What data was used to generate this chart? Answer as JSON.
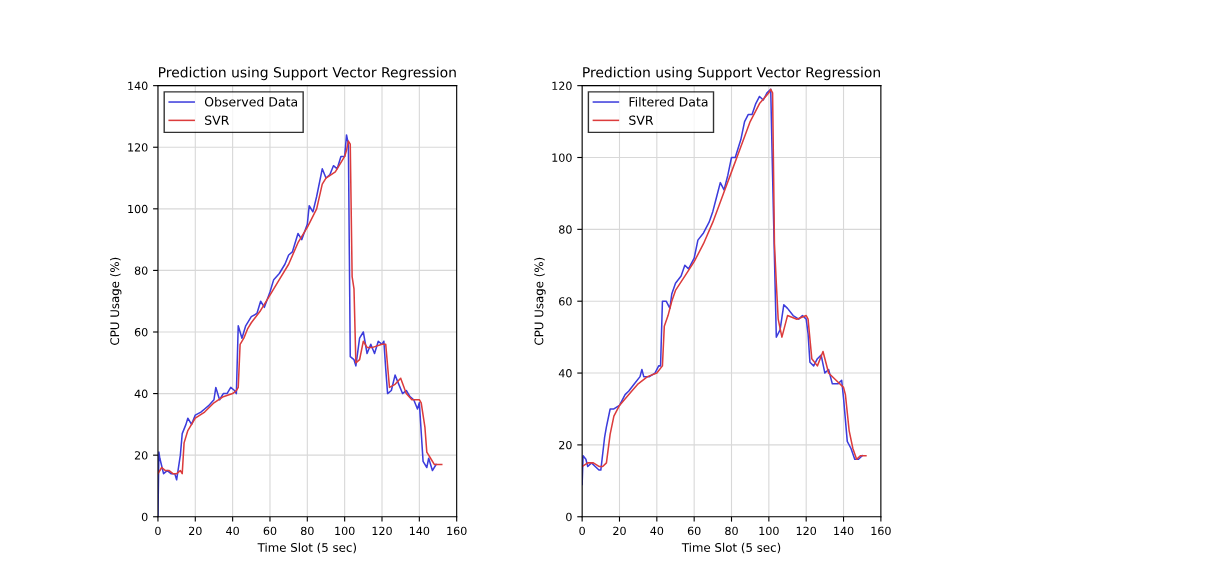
{
  "chart_data": [
    {
      "type": "line",
      "title": "Prediction using Support Vector Regression",
      "xlabel": "Time Slot (5 sec)",
      "ylabel": "CPU Usage (%)",
      "xlim": [
        0,
        160
      ],
      "xticks": [
        0,
        20,
        40,
        60,
        80,
        100,
        120,
        140,
        160
      ],
      "ylim": [
        0,
        140
      ],
      "yticks": [
        0,
        20,
        40,
        60,
        80,
        100,
        120,
        140
      ],
      "grid": true,
      "legend": "top left",
      "series": [
        {
          "name": "Observed Data",
          "color": "#3c3cdc",
          "x": [
            0,
            0.5,
            1,
            3,
            5,
            7,
            9,
            10,
            12,
            13,
            15,
            16,
            18,
            20,
            23,
            25,
            27,
            30,
            31,
            33,
            35,
            37,
            39,
            41,
            42,
            43,
            45,
            47,
            50,
            53,
            55,
            57,
            60,
            62,
            65,
            68,
            70,
            72,
            75,
            77,
            80,
            81,
            83,
            85,
            88,
            90,
            92,
            94,
            96,
            98,
            100,
            101,
            102,
            103,
            105,
            106,
            108,
            110,
            112,
            114,
            116,
            118,
            120,
            121,
            122,
            123,
            125,
            127,
            129,
            131,
            133,
            135,
            137,
            139,
            140,
            142,
            144,
            145,
            147,
            149
          ],
          "values": [
            0,
            21,
            19,
            14,
            15,
            14,
            14,
            12,
            20,
            27,
            30,
            32,
            30,
            33,
            34,
            35,
            36,
            38,
            42,
            38,
            40,
            40,
            42,
            41,
            40,
            62,
            58,
            62,
            65,
            66,
            70,
            68,
            73,
            77,
            79,
            82,
            85,
            86,
            92,
            90,
            95,
            101,
            99,
            104,
            113,
            110,
            111,
            114,
            113,
            117,
            117,
            124,
            121,
            52,
            51,
            49,
            58,
            60,
            53,
            56,
            53,
            57,
            56,
            57,
            48,
            40,
            41,
            46,
            43,
            40,
            41,
            39,
            38,
            35,
            37,
            18,
            16,
            19,
            15,
            17
          ]
        },
        {
          "name": "SVR",
          "color": "#dc3c3c",
          "x": [
            0,
            2,
            4,
            6,
            8,
            10,
            12,
            13,
            14,
            16,
            18,
            20,
            25,
            30,
            35,
            40,
            42,
            43,
            44,
            46,
            48,
            50,
            55,
            60,
            65,
            70,
            75,
            80,
            85,
            88,
            90,
            95,
            100,
            101,
            102,
            103,
            104,
            105,
            106,
            108,
            110,
            112,
            115,
            120,
            122,
            124,
            127,
            130,
            133,
            136,
            140,
            141,
            143,
            144,
            146,
            148,
            150,
            152
          ],
          "values": [
            14,
            16,
            15,
            15,
            14,
            14,
            15,
            14,
            24,
            28,
            30,
            32,
            34,
            37,
            39,
            40,
            41,
            42,
            56,
            58,
            61,
            63,
            67,
            72,
            77,
            82,
            89,
            94,
            100,
            108,
            110,
            112,
            117,
            119,
            122,
            121,
            78,
            74,
            50,
            51,
            57,
            55,
            55,
            56,
            56,
            42,
            43,
            45,
            40,
            38,
            38,
            37,
            29,
            21,
            19,
            17,
            17,
            17
          ]
        }
      ]
    },
    {
      "type": "line",
      "title": "Prediction using Support Vector Regression",
      "xlabel": "Time Slot (5 sec)",
      "ylabel": "CPU Usage (%)",
      "xlim": [
        0,
        160
      ],
      "xticks": [
        0,
        20,
        40,
        60,
        80,
        100,
        120,
        140,
        160
      ],
      "ylim": [
        0,
        120
      ],
      "yticks": [
        0,
        20,
        40,
        60,
        80,
        100,
        120
      ],
      "grid": true,
      "legend": "top left",
      "series": [
        {
          "name": "Filtered Data",
          "color": "#3c3cdc",
          "x": [
            0,
            0.5,
            2,
            3,
            5,
            7,
            9,
            10,
            12,
            13,
            15,
            17,
            20,
            23,
            25,
            28,
            31,
            32,
            33,
            36,
            39,
            41,
            42,
            43,
            45,
            47,
            48,
            50,
            53,
            55,
            57,
            60,
            62,
            65,
            68,
            70,
            72,
            74,
            76,
            78,
            80,
            82,
            85,
            87,
            89,
            91,
            93,
            95,
            97,
            99,
            101,
            102,
            103,
            104,
            106,
            108,
            110,
            113,
            116,
            118,
            120,
            121,
            122,
            124,
            126,
            128,
            130,
            132,
            134,
            137,
            139,
            140,
            142,
            144,
            146,
            148,
            150
          ],
          "values": [
            9,
            17,
            16,
            14,
            15,
            14,
            13,
            13,
            22,
            25,
            30,
            30,
            31,
            34,
            35,
            37,
            39,
            41,
            39,
            39,
            40,
            42,
            42,
            60,
            60,
            58,
            62,
            65,
            67,
            70,
            69,
            72,
            77,
            79,
            82,
            85,
            89,
            93,
            91,
            95,
            100,
            100,
            105,
            110,
            112,
            112,
            115,
            117,
            116,
            118,
            119,
            95,
            72,
            50,
            52,
            59,
            58,
            56,
            55,
            56,
            55,
            51,
            43,
            42,
            44,
            45,
            40,
            41,
            37,
            37,
            38,
            33,
            21,
            19,
            16,
            16,
            17
          ]
        },
        {
          "name": "SVR",
          "color": "#dc3c3c",
          "x": [
            0,
            3,
            6,
            9,
            11,
            13,
            15,
            17,
            20,
            25,
            30,
            35,
            40,
            43,
            44,
            46,
            48,
            50,
            55,
            60,
            65,
            70,
            75,
            80,
            85,
            90,
            95,
            100,
            101,
            102,
            103,
            104,
            105,
            107,
            110,
            115,
            120,
            121,
            123,
            126,
            129,
            132,
            136,
            140,
            141,
            143,
            145,
            147,
            149,
            152
          ],
          "values": [
            14,
            15,
            15,
            14,
            14,
            15,
            23,
            28,
            31,
            34,
            37,
            39,
            40,
            42,
            53,
            56,
            60,
            63,
            67,
            71,
            76,
            82,
            89,
            96,
            103,
            110,
            115,
            118,
            119,
            118,
            76,
            65,
            55,
            50,
            56,
            55,
            56,
            55,
            44,
            42,
            46,
            40,
            38,
            36,
            34,
            24,
            19,
            16,
            17,
            17
          ]
        }
      ]
    }
  ]
}
